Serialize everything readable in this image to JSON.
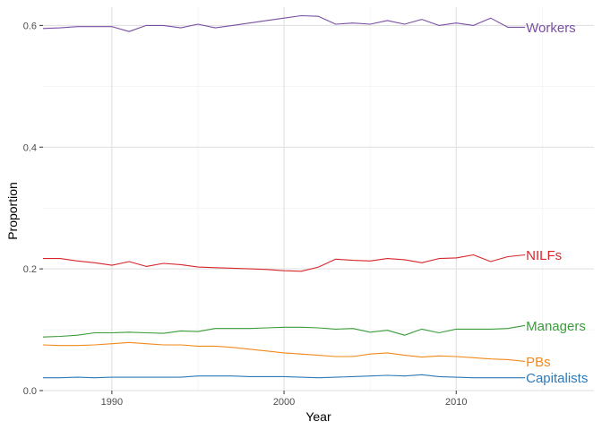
{
  "chart_data": {
    "type": "line",
    "title": "",
    "xlabel": "Year",
    "ylabel": "Proportion",
    "xlim": [
      1986,
      2018
    ],
    "ylim": [
      0,
      0.63
    ],
    "x_ticks": [
      1990,
      2000,
      2010
    ],
    "x_tick_labels": [
      "1990",
      "2000",
      "2010"
    ],
    "y_ticks": [
      0.0,
      0.2,
      0.4,
      0.6
    ],
    "y_tick_labels": [
      "0.0",
      "0.2",
      "0.4",
      "0.6"
    ],
    "grid": true,
    "legend": "direct labels at line ends",
    "x": [
      1986,
      1987,
      1988,
      1989,
      1990,
      1991,
      1992,
      1993,
      1994,
      1995,
      1996,
      1997,
      1998,
      1999,
      2000,
      2001,
      2002,
      2003,
      2004,
      2005,
      2006,
      2007,
      2008,
      2009,
      2010,
      2011,
      2012,
      2013,
      2014
    ],
    "series": [
      {
        "name": "Workers",
        "color": "#7a4fa3",
        "values": [
          0.595,
          0.596,
          0.598,
          0.598,
          0.598,
          0.59,
          0.6,
          0.6,
          0.596,
          0.602,
          0.596,
          0.6,
          0.604,
          0.608,
          0.612,
          0.616,
          0.615,
          0.602,
          0.604,
          0.602,
          0.608,
          0.602,
          0.61,
          0.6,
          0.604,
          0.6,
          0.612,
          0.597,
          0.597
        ]
      },
      {
        "name": "NILFs",
        "color": "#d7262b",
        "values": [
          0.217,
          0.217,
          0.213,
          0.21,
          0.206,
          0.212,
          0.204,
          0.209,
          0.207,
          0.203,
          0.202,
          0.201,
          0.2,
          0.199,
          0.197,
          0.196,
          0.203,
          0.216,
          0.214,
          0.213,
          0.217,
          0.215,
          0.21,
          0.217,
          0.218,
          0.223,
          0.212,
          0.22,
          0.223
        ]
      },
      {
        "name": "Managers",
        "color": "#3a9c3a",
        "values": [
          0.088,
          0.089,
          0.091,
          0.095,
          0.095,
          0.096,
          0.095,
          0.094,
          0.098,
          0.097,
          0.102,
          0.102,
          0.102,
          0.103,
          0.104,
          0.104,
          0.103,
          0.101,
          0.102,
          0.096,
          0.099,
          0.091,
          0.101,
          0.095,
          0.101,
          0.101,
          0.101,
          0.102,
          0.107
        ]
      },
      {
        "name": "PBs",
        "color": "#f08a1c",
        "values": [
          0.075,
          0.074,
          0.074,
          0.075,
          0.077,
          0.079,
          0.077,
          0.075,
          0.075,
          0.073,
          0.073,
          0.071,
          0.068,
          0.065,
          0.062,
          0.06,
          0.058,
          0.056,
          0.056,
          0.06,
          0.062,
          0.058,
          0.055,
          0.057,
          0.056,
          0.054,
          0.052,
          0.051,
          0.048
        ]
      },
      {
        "name": "Capitalists",
        "color": "#2f79b8",
        "values": [
          0.021,
          0.021,
          0.022,
          0.021,
          0.022,
          0.022,
          0.022,
          0.022,
          0.022,
          0.024,
          0.024,
          0.024,
          0.023,
          0.023,
          0.023,
          0.022,
          0.021,
          0.022,
          0.023,
          0.024,
          0.025,
          0.024,
          0.026,
          0.023,
          0.022,
          0.021,
          0.021,
          0.021,
          0.021
        ]
      }
    ]
  }
}
